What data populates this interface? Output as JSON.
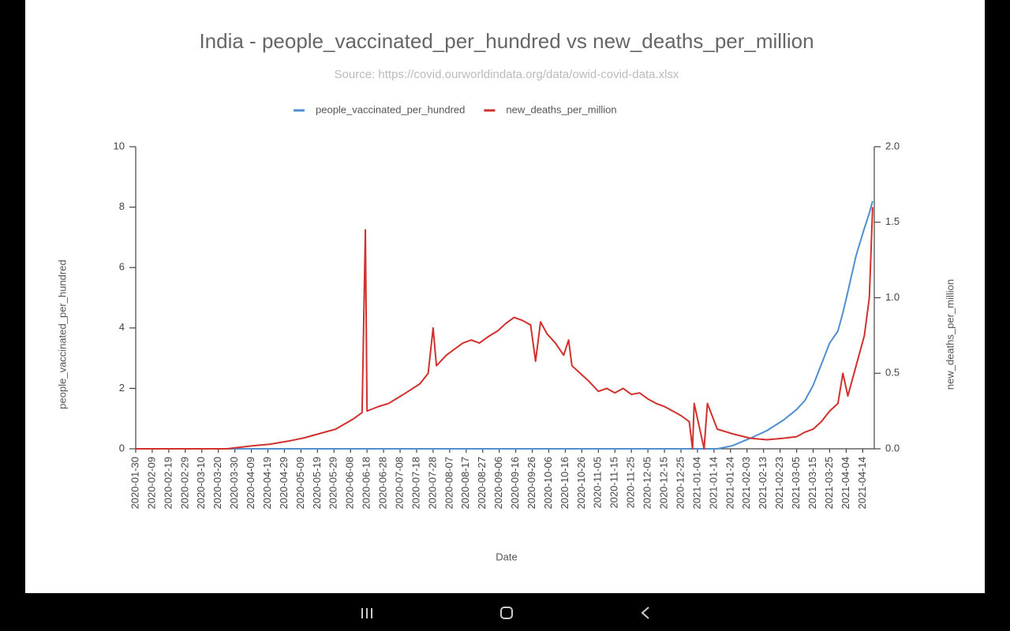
{
  "chart_data": {
    "type": "line",
    "title": "India - people_vaccinated_per_hundred vs new_deaths_per_million",
    "subtitle": "Source: https://covid.ourworldindata.org/data/owid-covid-data.xlsx",
    "x_label": "Date",
    "y_label": "people_vaccinated_per_hundred",
    "y2_label": "new_deaths_per_million",
    "legend": "top",
    "grid": false,
    "x": [
      "2020-01-30",
      "2020-03-25",
      "2020-04-10",
      "2020-04-20",
      "2020-05-01",
      "2020-05-10",
      "2020-05-20",
      "2020-05-30",
      "2020-06-10",
      "2020-06-15",
      "2020-06-17",
      "2020-06-18",
      "2020-06-25",
      "2020-07-01",
      "2020-07-10",
      "2020-07-20",
      "2020-07-25",
      "2020-07-28",
      "2020-07-30",
      "2020-08-05",
      "2020-08-10",
      "2020-08-15",
      "2020-08-20",
      "2020-08-25",
      "2020-08-30",
      "2020-09-05",
      "2020-09-10",
      "2020-09-15",
      "2020-09-20",
      "2020-09-25",
      "2020-09-28",
      "2020-10-01",
      "2020-10-05",
      "2020-10-10",
      "2020-10-15",
      "2020-10-18",
      "2020-10-20",
      "2020-10-25",
      "2020-10-30",
      "2020-11-05",
      "2020-11-10",
      "2020-11-15",
      "2020-11-20",
      "2020-11-25",
      "2020-11-30",
      "2020-12-05",
      "2020-12-10",
      "2020-12-15",
      "2020-12-20",
      "2020-12-25",
      "2020-12-30",
      "2021-01-01",
      "2021-01-02",
      "2021-01-08",
      "2021-01-10",
      "2021-01-16",
      "2021-01-25",
      "2021-02-05",
      "2021-02-15",
      "2021-02-25",
      "2021-03-05",
      "2021-03-10",
      "2021-03-15",
      "2021-03-20",
      "2021-03-25",
      "2021-03-30",
      "2021-04-02",
      "2021-04-05",
      "2021-04-10",
      "2021-04-15",
      "2021-04-18",
      "2021-04-20"
    ],
    "xlim": [
      "2020-01-30",
      "2021-04-21"
    ],
    "xticks": [
      "2020-01-30",
      "2020-02-09",
      "2020-02-19",
      "2020-02-29",
      "2020-03-10",
      "2020-03-20",
      "2020-03-30",
      "2020-04-09",
      "2020-04-19",
      "2020-04-29",
      "2020-05-09",
      "2020-05-19",
      "2020-05-29",
      "2020-06-08",
      "2020-06-18",
      "2020-06-28",
      "2020-07-08",
      "2020-07-18",
      "2020-07-28",
      "2020-08-07",
      "2020-08-17",
      "2020-08-27",
      "2020-09-06",
      "2020-09-16",
      "2020-09-26",
      "2020-10-06",
      "2020-10-16",
      "2020-10-26",
      "2020-11-05",
      "2020-11-15",
      "2020-11-25",
      "2020-12-05",
      "2020-12-15",
      "2020-12-25",
      "2021-01-04",
      "2021-01-14",
      "2021-01-24",
      "2021-02-03",
      "2021-02-13",
      "2021-02-23",
      "2021-03-05",
      "2021-03-15",
      "2021-03-25",
      "2021-04-04",
      "2021-04-14"
    ],
    "ylim": [
      0,
      10
    ],
    "yticks": [
      0,
      2,
      4,
      6,
      8,
      10
    ],
    "y2lim": [
      0,
      2
    ],
    "y2ticks": [
      {
        "value": 0,
        "label": "0.0"
      },
      0.5,
      {
        "value": 1,
        "label": "1.0"
      },
      1.5,
      {
        "value": 2,
        "label": "2.0"
      }
    ],
    "series": [
      {
        "name": "people_vaccinated_per_hundred",
        "color": "#4f8fd0",
        "axis": "y",
        "values": [
          0,
          0,
          0,
          0,
          0,
          0,
          0,
          0,
          0,
          0,
          0,
          0,
          0,
          0,
          0,
          0,
          0,
          0,
          0,
          0,
          0,
          0,
          0,
          0,
          0,
          0,
          0,
          0,
          0,
          0,
          0,
          0,
          0,
          0,
          0,
          0,
          0,
          0,
          0,
          0,
          0,
          0,
          0,
          0,
          0,
          0,
          0,
          0,
          0,
          0,
          0,
          0,
          0,
          0,
          0,
          0,
          0.1,
          0.35,
          0.6,
          0.95,
          1.3,
          1.6,
          2.1,
          2.8,
          3.5,
          3.9,
          4.5,
          5.2,
          6.4,
          7.3,
          7.8,
          8.2
        ]
      },
      {
        "name": "new_deaths_per_million",
        "color": "#d0312d",
        "axis": "y2",
        "values": [
          0,
          0,
          0.02,
          0.03,
          0.05,
          0.07,
          0.1,
          0.13,
          0.2,
          0.24,
          1.45,
          0.25,
          0.28,
          0.3,
          0.36,
          0.43,
          0.5,
          0.8,
          0.55,
          0.62,
          0.66,
          0.7,
          0.72,
          0.7,
          0.74,
          0.78,
          0.83,
          0.87,
          0.85,
          0.82,
          0.58,
          0.84,
          0.76,
          0.7,
          0.62,
          0.72,
          0.55,
          0.5,
          0.45,
          0.38,
          0.4,
          0.37,
          0.4,
          0.36,
          0.37,
          0.33,
          0.3,
          0.28,
          0.25,
          0.22,
          0.18,
          0,
          0.3,
          0,
          0.3,
          0.13,
          0.1,
          0.07,
          0.06,
          0.07,
          0.08,
          0.11,
          0.13,
          0.18,
          0.25,
          0.3,
          0.5,
          0.35,
          0.55,
          0.75,
          1.0,
          1.6
        ]
      }
    ]
  }
}
